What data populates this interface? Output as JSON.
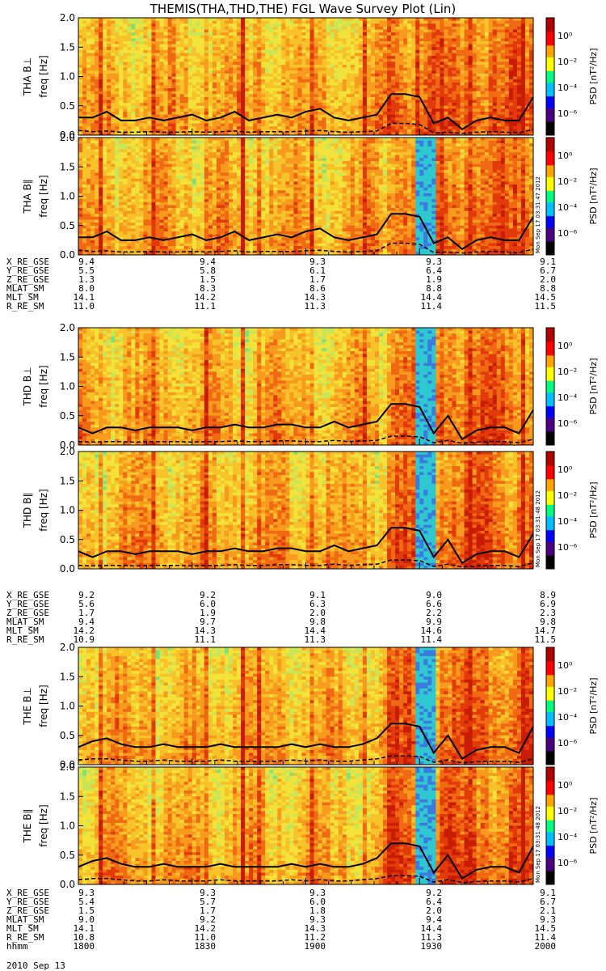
{
  "title": "THEMIS(THA,THD,THE) FGL Wave Survey Plot (Lin)",
  "colorbar": {
    "label": "PSD [nT²/Hz]",
    "ticks": [
      "10⁰",
      "10⁻²",
      "10⁻⁴",
      "10⁻⁶"
    ],
    "colors": [
      "#000000",
      "#4b0082",
      "#0000ff",
      "#00bfff",
      "#00ff80",
      "#ffff00",
      "#ffa500",
      "#ff0000",
      "#b00000"
    ]
  },
  "timestamps": [
    "Mon Sep 17 03:31:47 2012",
    "Mon Sep 17 03:31:48 2012",
    "Mon Sep 17 03:31:48 2012"
  ],
  "chart_data": [
    {
      "type": "heatmap",
      "ylabel": "THA B⊥",
      "ysub": "freq [Hz]",
      "ylim": [
        0,
        2
      ],
      "yticks": [
        "0.0",
        "0.5",
        "1.0",
        "1.5",
        "2.0"
      ],
      "xlim": [
        1800,
        2000
      ],
      "series": [
        {
          "name": "solid",
          "values": [
            0.3,
            0.3,
            0.4,
            0.25,
            0.25,
            0.3,
            0.25,
            0.3,
            0.35,
            0.25,
            0.3,
            0.4,
            0.25,
            0.3,
            0.35,
            0.3,
            0.4,
            0.45,
            0.3,
            0.25,
            0.3,
            0.35,
            0.7,
            0.7,
            0.65,
            0.2,
            0.3,
            0.1,
            0.25,
            0.3,
            0.25,
            0.25,
            0.65
          ]
        },
        {
          "name": "dashed",
          "values": [
            0.08,
            0.06,
            0.07,
            0.05,
            0.05,
            0.06,
            0.05,
            0.05,
            0.06,
            0.05,
            0.06,
            0.07,
            0.05,
            0.06,
            0.06,
            0.06,
            0.07,
            0.08,
            0.06,
            0.05,
            0.06,
            0.07,
            0.2,
            0.2,
            0.18,
            0.04,
            0.05,
            0.03,
            0.05,
            0.06,
            0.05,
            0.04,
            0.1
          ]
        }
      ]
    },
    {
      "type": "heatmap",
      "ylabel": "THA B∥",
      "ysub": "freq [Hz]",
      "ylim": [
        0,
        2
      ],
      "yticks": [
        "0.0",
        "0.5",
        "1.0",
        "1.5",
        "2.0"
      ],
      "xlim": [
        1800,
        2000
      ],
      "series": [
        {
          "name": "solid",
          "values": [
            0.3,
            0.3,
            0.4,
            0.25,
            0.25,
            0.3,
            0.25,
            0.3,
            0.35,
            0.25,
            0.3,
            0.4,
            0.25,
            0.3,
            0.35,
            0.3,
            0.4,
            0.45,
            0.3,
            0.25,
            0.3,
            0.35,
            0.7,
            0.7,
            0.65,
            0.2,
            0.3,
            0.1,
            0.25,
            0.3,
            0.25,
            0.25,
            0.65
          ]
        },
        {
          "name": "dashed",
          "values": [
            0.08,
            0.06,
            0.07,
            0.05,
            0.05,
            0.06,
            0.05,
            0.05,
            0.06,
            0.05,
            0.06,
            0.07,
            0.05,
            0.06,
            0.06,
            0.06,
            0.07,
            0.08,
            0.06,
            0.05,
            0.06,
            0.07,
            0.2,
            0.2,
            0.18,
            0.04,
            0.05,
            0.03,
            0.05,
            0.06,
            0.05,
            0.04,
            0.1
          ]
        }
      ]
    },
    {
      "type": "heatmap",
      "ylabel": "THD B⊥",
      "ysub": "freq [Hz]",
      "ylim": [
        0,
        2
      ],
      "yticks": [
        "0.0",
        "0.5",
        "1.0",
        "1.5",
        "2.0"
      ],
      "xlim": [
        1800,
        2000
      ],
      "series": [
        {
          "name": "solid",
          "values": [
            0.3,
            0.2,
            0.3,
            0.3,
            0.25,
            0.3,
            0.3,
            0.3,
            0.25,
            0.3,
            0.3,
            0.35,
            0.3,
            0.3,
            0.35,
            0.35,
            0.3,
            0.3,
            0.4,
            0.3,
            0.35,
            0.4,
            0.7,
            0.7,
            0.65,
            0.2,
            0.5,
            0.1,
            0.25,
            0.3,
            0.3,
            0.2,
            0.6
          ]
        },
        {
          "name": "dashed",
          "values": [
            0.06,
            0.05,
            0.06,
            0.06,
            0.05,
            0.06,
            0.06,
            0.06,
            0.05,
            0.06,
            0.06,
            0.07,
            0.06,
            0.06,
            0.07,
            0.07,
            0.06,
            0.06,
            0.08,
            0.06,
            0.07,
            0.08,
            0.15,
            0.15,
            0.14,
            0.04,
            0.08,
            0.03,
            0.05,
            0.06,
            0.06,
            0.04,
            0.1
          ]
        }
      ]
    },
    {
      "type": "heatmap",
      "ylabel": "THD B∥",
      "ysub": "freq [Hz]",
      "ylim": [
        0,
        2
      ],
      "yticks": [
        "0.0",
        "0.5",
        "1.0",
        "1.5",
        "2.0"
      ],
      "xlim": [
        1800,
        2000
      ],
      "series": [
        {
          "name": "solid",
          "values": [
            0.3,
            0.2,
            0.3,
            0.3,
            0.25,
            0.3,
            0.3,
            0.3,
            0.25,
            0.3,
            0.3,
            0.35,
            0.3,
            0.3,
            0.35,
            0.35,
            0.3,
            0.3,
            0.4,
            0.3,
            0.35,
            0.4,
            0.7,
            0.7,
            0.65,
            0.2,
            0.5,
            0.1,
            0.25,
            0.3,
            0.3,
            0.2,
            0.6
          ]
        },
        {
          "name": "dashed",
          "values": [
            0.06,
            0.05,
            0.06,
            0.06,
            0.05,
            0.06,
            0.06,
            0.06,
            0.05,
            0.06,
            0.06,
            0.07,
            0.06,
            0.06,
            0.07,
            0.07,
            0.06,
            0.06,
            0.08,
            0.06,
            0.07,
            0.08,
            0.15,
            0.15,
            0.14,
            0.04,
            0.08,
            0.03,
            0.05,
            0.06,
            0.06,
            0.04,
            0.1
          ]
        }
      ]
    },
    {
      "type": "heatmap",
      "ylabel": "THE B⊥",
      "ysub": "freq [Hz]",
      "ylim": [
        0,
        2
      ],
      "yticks": [
        "0.0",
        "0.5",
        "1.0",
        "1.5",
        "2.0"
      ],
      "xlim": [
        1800,
        2000
      ],
      "series": [
        {
          "name": "solid",
          "values": [
            0.3,
            0.4,
            0.45,
            0.35,
            0.3,
            0.3,
            0.35,
            0.3,
            0.3,
            0.3,
            0.35,
            0.3,
            0.3,
            0.3,
            0.3,
            0.35,
            0.3,
            0.35,
            0.3,
            0.3,
            0.35,
            0.45,
            0.7,
            0.7,
            0.65,
            0.2,
            0.5,
            0.1,
            0.25,
            0.3,
            0.3,
            0.2,
            0.65
          ]
        },
        {
          "name": "dashed",
          "values": [
            0.08,
            0.1,
            0.1,
            0.08,
            0.06,
            0.06,
            0.08,
            0.06,
            0.06,
            0.06,
            0.08,
            0.06,
            0.06,
            0.06,
            0.06,
            0.08,
            0.06,
            0.08,
            0.06,
            0.06,
            0.08,
            0.1,
            0.15,
            0.15,
            0.14,
            0.04,
            0.08,
            0.03,
            0.05,
            0.06,
            0.06,
            0.04,
            0.1
          ]
        }
      ]
    },
    {
      "type": "heatmap",
      "ylabel": "THE B∥",
      "ysub": "freq [Hz]",
      "ylim": [
        0,
        2
      ],
      "yticks": [
        "0.0",
        "0.5",
        "1.0",
        "1.5",
        "2.0"
      ],
      "xlim": [
        1800,
        2000
      ],
      "series": [
        {
          "name": "solid",
          "values": [
            0.3,
            0.4,
            0.45,
            0.35,
            0.3,
            0.3,
            0.35,
            0.3,
            0.3,
            0.3,
            0.35,
            0.3,
            0.3,
            0.3,
            0.3,
            0.35,
            0.3,
            0.35,
            0.3,
            0.3,
            0.35,
            0.45,
            0.7,
            0.7,
            0.65,
            0.2,
            0.5,
            0.1,
            0.25,
            0.3,
            0.3,
            0.2,
            0.65
          ]
        },
        {
          "name": "dashed",
          "values": [
            0.08,
            0.1,
            0.1,
            0.08,
            0.06,
            0.06,
            0.08,
            0.06,
            0.06,
            0.06,
            0.08,
            0.06,
            0.06,
            0.06,
            0.06,
            0.08,
            0.06,
            0.08,
            0.06,
            0.06,
            0.08,
            0.1,
            0.15,
            0.15,
            0.14,
            0.04,
            0.08,
            0.03,
            0.05,
            0.06,
            0.06,
            0.04,
            0.1
          ]
        }
      ]
    }
  ],
  "ephemeris": [
    {
      "rows": [
        {
          "label": "X_RE_GSE",
          "values": [
            "9.4",
            "9.4",
            "9.3",
            "9.3",
            "9.1"
          ]
        },
        {
          "label": "Y_RE_GSE",
          "values": [
            "5.5",
            "5.8",
            "6.1",
            "6.4",
            "6.7"
          ]
        },
        {
          "label": "Z_RE_GSE",
          "values": [
            "1.3",
            "1.5",
            "1.7",
            "1.9",
            "2.0"
          ]
        },
        {
          "label": "MLAT_SM",
          "values": [
            "8.0",
            "8.3",
            "8.6",
            "8.8",
            "8.8"
          ]
        },
        {
          "label": "MLT_SM",
          "values": [
            "14.1",
            "14.2",
            "14.3",
            "14.4",
            "14.5"
          ]
        },
        {
          "label": "R_RE_SM",
          "values": [
            "11.0",
            "11.1",
            "11.3",
            "11.4",
            "11.5"
          ]
        }
      ]
    },
    {
      "rows": [
        {
          "label": "X_RE_GSE",
          "values": [
            "9.2",
            "9.2",
            "9.1",
            "9.0",
            "8.9"
          ]
        },
        {
          "label": "Y_RE_GSE",
          "values": [
            "5.6",
            "6.0",
            "6.3",
            "6.6",
            "6.9"
          ]
        },
        {
          "label": "Z_RE_GSE",
          "values": [
            "1.7",
            "1.9",
            "2.0",
            "2.2",
            "2.3"
          ]
        },
        {
          "label": "MLAT_SM",
          "values": [
            "9.4",
            "9.7",
            "9.8",
            "9.9",
            "9.8"
          ]
        },
        {
          "label": "MLT_SM",
          "values": [
            "14.2",
            "14.3",
            "14.4",
            "14.6",
            "14.7"
          ]
        },
        {
          "label": "R_RE_SM",
          "values": [
            "10.9",
            "11.1",
            "11.3",
            "11.4",
            "11.5"
          ]
        }
      ]
    },
    {
      "rows": [
        {
          "label": "X_RE_GSE",
          "values": [
            "9.3",
            "9.3",
            "9.3",
            "9.2",
            "9.1"
          ]
        },
        {
          "label": "Y_RE_GSE",
          "values": [
            "5.4",
            "5.7",
            "6.0",
            "6.4",
            "6.7"
          ]
        },
        {
          "label": "Z_RE_GSE",
          "values": [
            "1.5",
            "1.7",
            "1.8",
            "2.0",
            "2.1"
          ]
        },
        {
          "label": "MLAT_SM",
          "values": [
            "9.0",
            "9.2",
            "9.3",
            "9.4",
            "9.3"
          ]
        },
        {
          "label": "MLT_SM",
          "values": [
            "14.1",
            "14.2",
            "14.3",
            "14.4",
            "14.5"
          ]
        },
        {
          "label": "R_RE_SM",
          "values": [
            "10.8",
            "11.0",
            "11.2",
            "11.3",
            "11.4"
          ]
        },
        {
          "label": "hhmm",
          "values": [
            "1800",
            "1830",
            "1900",
            "1930",
            "2000"
          ]
        }
      ]
    }
  ],
  "date": "2010 Sep 13"
}
